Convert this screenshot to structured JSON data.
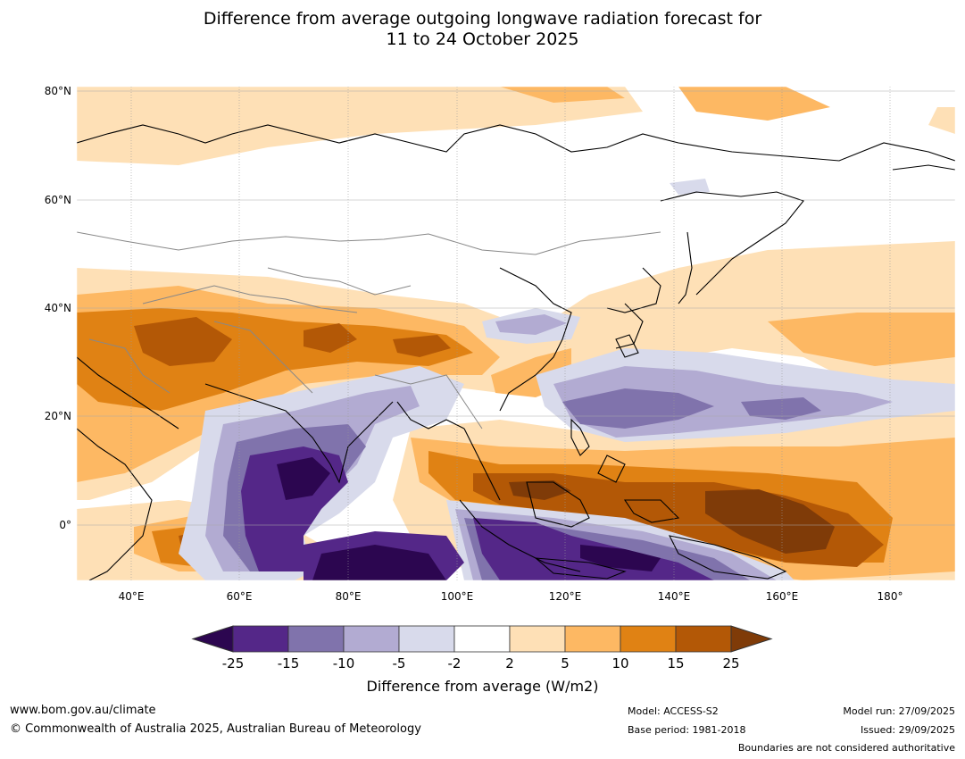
{
  "title": {
    "line1": "Difference from average outgoing longwave radiation forecast for",
    "line2": "11 to 24 October 2025"
  },
  "lat_labels": [
    "80°N",
    "60°N",
    "40°N",
    "20°N",
    "0°"
  ],
  "lon_labels": [
    "40°E",
    "60°E",
    "80°E",
    "100°E",
    "120°E",
    "140°E",
    "160°E",
    "180°"
  ],
  "colorbar": {
    "ticks": [
      "-25",
      "-15",
      "-10",
      "-5",
      "-2",
      "2",
      "5",
      "10",
      "15",
      "25"
    ],
    "colors": [
      "#2c0650",
      "#542788",
      "#8073ac",
      "#b2abd2",
      "#d8daeb",
      "#ffffff",
      "#fee0b6",
      "#fdb863",
      "#e08214",
      "#b35806",
      "#7f3b08"
    ],
    "label": "Difference from average (W/m2)"
  },
  "footer": {
    "url": "www.bom.gov.au/climate",
    "copyright": "© Commonwealth of Australia 2025, Australian Bureau of Meteorology",
    "model": "Model: ACCESS-S2",
    "base_period": "Base period: 1981-2018",
    "model_run": "Model run: 27/09/2025",
    "issued": "Issued: 29/09/2025",
    "disclaimer": "Boundaries are not considered authoritative"
  }
}
